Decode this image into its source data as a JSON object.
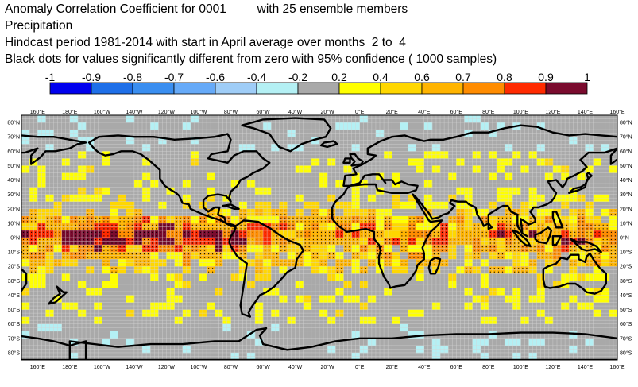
{
  "header": {
    "line1": "Anomaly Correlation Coefficient for 0001         with 25 ensemble members",
    "line2": "Precipitation",
    "line3": "Hindcast period 1981-2014 with start in April average over months  2 to  4",
    "line4": "Black dots for values significantly different from zero with 95% confidence ( 1000 samples)"
  },
  "colorbar": {
    "labels": [
      "-1",
      "-0.9",
      "-0.8",
      "-0.7",
      "-0.6",
      "-0.4",
      "-0.2",
      "0.2",
      "0.4",
      "0.6",
      "0.7",
      "0.8",
      "0.9",
      "1"
    ],
    "colors": [
      "#0000ee",
      "#1e6fe8",
      "#3a8ef0",
      "#66aaf8",
      "#9fcdf7",
      "#b4f0f4",
      "#a9a9a9",
      "#ffff00",
      "#ffd700",
      "#ffb400",
      "#ff8c00",
      "#ff2a00",
      "#7a0b2e"
    ]
  },
  "map": {
    "lon_labels": [
      "160°E",
      "180°E",
      "160°W",
      "140°W",
      "120°W",
      "100°W",
      "80°W",
      "60°W",
      "40°W",
      "20°W",
      "0°E",
      "20°E",
      "40°E",
      "60°E",
      "80°E",
      "100°E",
      "120°E",
      "140°E",
      "160°E"
    ],
    "lat_labels": [
      "80°N",
      "70°N",
      "60°N",
      "50°N",
      "40°N",
      "30°N",
      "20°N",
      "10°N",
      "0°N",
      "10°S",
      "20°S",
      "30°S",
      "40°S",
      "50°S",
      "60°S",
      "70°S",
      "80°S"
    ],
    "ocean_color": "#a9a9a9",
    "land_outline_color": "#000000"
  }
}
